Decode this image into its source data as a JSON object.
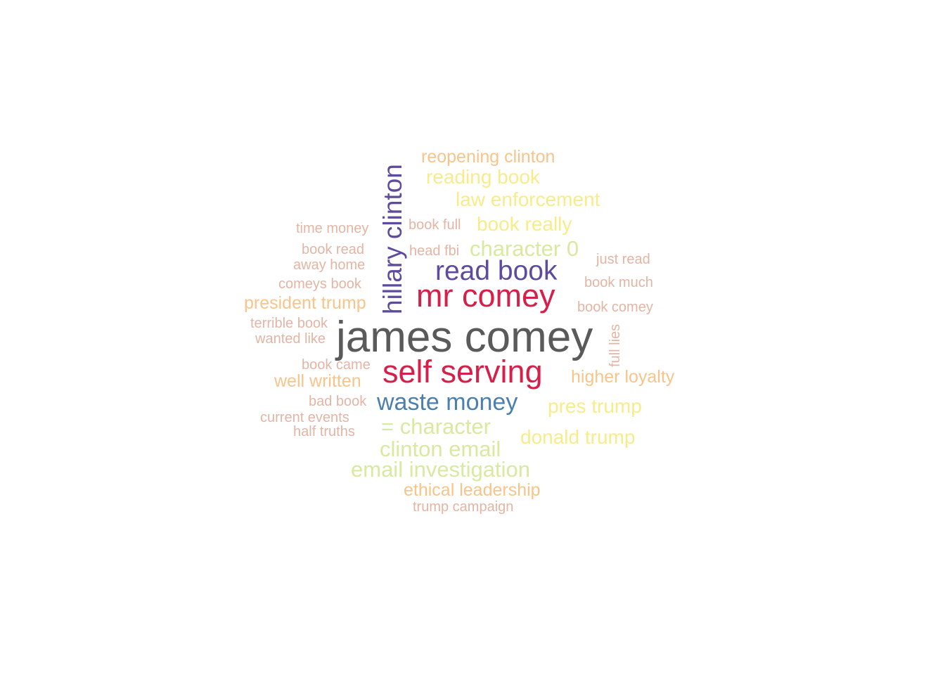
{
  "colors": {
    "dark_gray": "#5a5a5a",
    "crimson": "#d6204a",
    "purple": "#5e4b9d",
    "steel_blue": "#4a7fae",
    "light_green": "#d8e9a0",
    "light_yellow": "#f8ec8a",
    "peach": "#f8c48a",
    "salmon": "#e3b5a4"
  },
  "words": [
    {
      "text": "james comey",
      "color": "#5a5a5a"
    },
    {
      "text": "mr comey",
      "color": "#d6204a"
    },
    {
      "text": "self serving",
      "color": "#d6204a"
    },
    {
      "text": "read book",
      "color": "#5e4b9d"
    },
    {
      "text": "hillary clinton",
      "color": "#5e4b9d"
    },
    {
      "text": "waste money",
      "color": "#4a7fae"
    },
    {
      "text": "= character",
      "color": "#d8e9a0"
    },
    {
      "text": "clinton email",
      "color": "#d8e9a0"
    },
    {
      "text": "email investigation",
      "color": "#d8e9a0"
    },
    {
      "text": "law enforcement",
      "color": "#f8ec8a"
    },
    {
      "text": "book really",
      "color": "#f8ec8a"
    },
    {
      "text": "character 0",
      "color": "#d8e9a0"
    },
    {
      "text": "donald trump",
      "color": "#f8ec8a"
    },
    {
      "text": "pres trump",
      "color": "#f8ec8a"
    },
    {
      "text": "reading book",
      "color": "#f8ec8a"
    },
    {
      "text": "reopening clinton",
      "color": "#f8c48a"
    },
    {
      "text": "higher loyalty",
      "color": "#f8c48a"
    },
    {
      "text": "president trump",
      "color": "#f8c48a"
    },
    {
      "text": "well written",
      "color": "#f8c48a"
    },
    {
      "text": "ethical leadership",
      "color": "#f8c48a"
    },
    {
      "text": "trump campaign",
      "color": "#e3b5a4"
    },
    {
      "text": "time money",
      "color": "#e3b5a4"
    },
    {
      "text": "book read",
      "color": "#e3b5a4"
    },
    {
      "text": "away home",
      "color": "#e3b5a4"
    },
    {
      "text": "comeys book",
      "color": "#e3b5a4"
    },
    {
      "text": "terrible book",
      "color": "#e3b5a4"
    },
    {
      "text": "wanted like",
      "color": "#e3b5a4"
    },
    {
      "text": "book came",
      "color": "#e3b5a4"
    },
    {
      "text": "bad book",
      "color": "#e3b5a4"
    },
    {
      "text": "current events",
      "color": "#e3b5a4"
    },
    {
      "text": "half truths",
      "color": "#e3b5a4"
    },
    {
      "text": "book full",
      "color": "#e3b5a4"
    },
    {
      "text": "head fbi",
      "color": "#e3b5a4"
    },
    {
      "text": "just read",
      "color": "#e3b5a4"
    },
    {
      "text": "book much",
      "color": "#e3b5a4"
    },
    {
      "text": "book comey",
      "color": "#e3b5a4"
    },
    {
      "text": "full lies",
      "color": "#e3b5a4"
    }
  ]
}
